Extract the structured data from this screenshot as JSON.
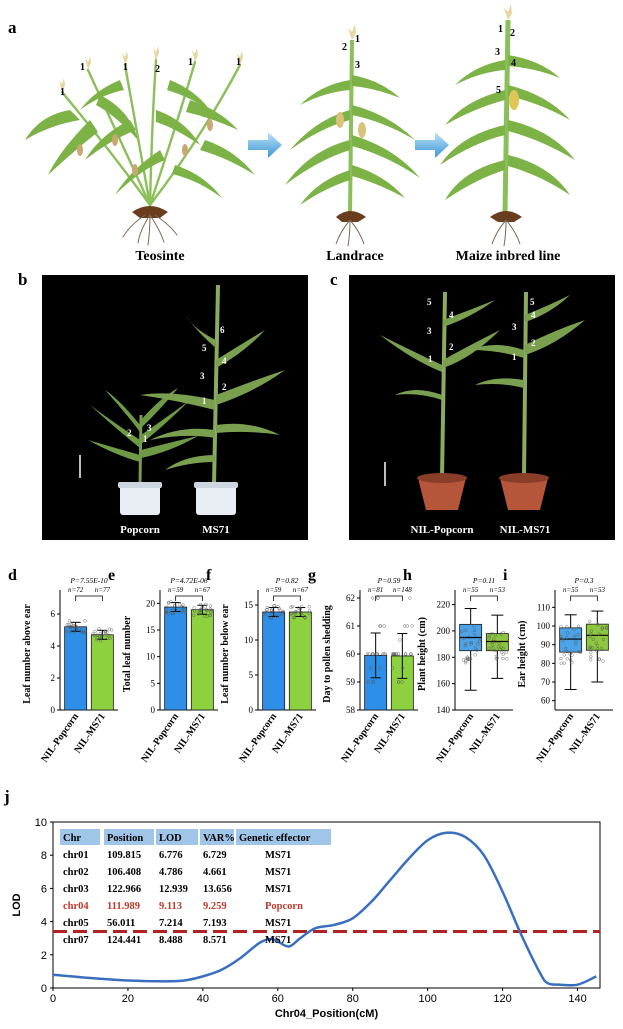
{
  "panel_a": {
    "label": "a",
    "stages": [
      "Teosinte",
      "Landrace",
      "Maize inbred line"
    ],
    "teosinte_numbers": [
      "1",
      "1",
      "1",
      "2",
      "1",
      "1"
    ],
    "landrace_numbers": [
      "2",
      "1",
      "3"
    ],
    "inbred_numbers": [
      "1",
      "2",
      "3",
      "4",
      "5"
    ]
  },
  "panel_b": {
    "label": "b",
    "captions": [
      "Popcorn",
      "MS71"
    ],
    "popcorn_numbers": [
      "2",
      "3",
      "1"
    ],
    "ms71_numbers": [
      "6",
      "5",
      "4",
      "3",
      "2",
      "1"
    ]
  },
  "panel_c": {
    "label": "c",
    "captions": [
      "NIL-Popcorn",
      "NIL-MS71"
    ],
    "left_numbers": [
      "5",
      "4",
      "3",
      "2",
      "1"
    ],
    "right_numbers": [
      "5",
      "4",
      "3",
      "2",
      "1"
    ]
  },
  "colors": {
    "popcorn_blue": "#2e8fe8",
    "ms71_green": "#8dd13f",
    "box_blue": "#4da3e8",
    "box_green": "#8dc63f",
    "qtl_curve": "#3a6fbf",
    "threshold": "#b22222",
    "table_header": "#9fc5e8",
    "highlight_red": "#c0392b"
  },
  "chart_data": [
    {
      "panel": "d",
      "type": "bar",
      "ylabel": "Leaf number above ear",
      "categories": [
        "NIL-Popcorn",
        "NIL-MS71"
      ],
      "values": [
        5.2,
        4.7
      ],
      "ylim": [
        0,
        7
      ],
      "yticks": [
        "0",
        "2",
        "4",
        "6"
      ],
      "p_value": "P=7.55E-10",
      "n": [
        "n=72",
        "n=77"
      ]
    },
    {
      "panel": "e",
      "type": "bar",
      "ylabel": "Total leaf number",
      "categories": [
        "NIL-Popcorn",
        "NIL-MS71"
      ],
      "values": [
        19.3,
        18.8
      ],
      "ylim": [
        0,
        21
      ],
      "yticks": [
        "0",
        "5",
        "10",
        "15",
        "20"
      ],
      "p_value": "P=4.72E-06",
      "n": [
        "n=59",
        "n=67"
      ]
    },
    {
      "panel": "f",
      "type": "bar",
      "ylabel": "Leaf number below ear",
      "categories": [
        "NIL-Popcorn",
        "NIL-MS71"
      ],
      "values": [
        14.0,
        14.0
      ],
      "ylim": [
        0,
        16
      ],
      "yticks": [
        "0",
        "5",
        "10",
        "15"
      ],
      "p_value": "P=0.82",
      "n": [
        "n=59",
        "n=67"
      ]
    },
    {
      "panel": "g",
      "type": "bar",
      "ylabel": "Day to pollen shedding",
      "categories": [
        "NIL-Popcorn",
        "NIL-MS71"
      ],
      "values": [
        59.95,
        59.93
      ],
      "ylim": [
        58,
        62
      ],
      "yticks": [
        "58",
        "59",
        "60",
        "61",
        "62"
      ],
      "p_value": "P=0.59",
      "n": [
        "n=81",
        "n=148"
      ]
    },
    {
      "panel": "h",
      "type": "box",
      "ylabel": "Plant height (cm)",
      "categories": [
        "NIL-Popcorn",
        "NIL-MS71"
      ],
      "boxes": [
        {
          "min": 155,
          "q1": 185,
          "median": 195,
          "q3": 205,
          "max": 217
        },
        {
          "min": 164,
          "q1": 185,
          "median": 192,
          "q3": 198,
          "max": 212
        }
      ],
      "ylim": [
        140,
        225
      ],
      "yticks": [
        "140",
        "160",
        "180",
        "200",
        "220"
      ],
      "p_value": "P=0.11",
      "n": [
        "n=55",
        "n=53"
      ]
    },
    {
      "panel": "i",
      "type": "box",
      "ylabel": "Ear height (cm)",
      "categories": [
        "NIL-Popcorn",
        "NIL-MS71"
      ],
      "boxes": [
        {
          "min": 66,
          "q1": 86,
          "median": 93,
          "q3": 99,
          "max": 106
        },
        {
          "min": 70,
          "q1": 87,
          "median": 95,
          "q3": 101,
          "max": 108
        }
      ],
      "ylim": [
        55,
        115
      ],
      "yticks": [
        "60",
        "70",
        "80",
        "90",
        "100",
        "110"
      ],
      "p_value": "P=0.3",
      "n": [
        "n=55",
        "n=53"
      ]
    },
    {
      "panel": "j",
      "type": "line",
      "ylabel": "LOD",
      "xlabel": "Chr04_Position(cM)",
      "x": [
        0,
        10,
        20,
        30,
        35,
        40,
        45,
        50,
        55,
        58,
        60,
        63,
        66,
        70,
        75,
        80,
        85,
        90,
        95,
        100,
        105,
        110,
        115,
        120,
        125,
        130,
        132,
        135,
        140,
        145
      ],
      "y": [
        0.8,
        0.6,
        0.45,
        0.4,
        0.45,
        0.7,
        1.1,
        1.8,
        2.7,
        2.95,
        2.8,
        2.5,
        3.0,
        3.6,
        3.8,
        4.2,
        5.2,
        6.5,
        7.8,
        8.9,
        9.35,
        9.1,
        8.0,
        5.8,
        3.2,
        0.9,
        0.3,
        0.2,
        0.2,
        0.7
      ],
      "xlim": [
        0,
        146
      ],
      "ylim": [
        0,
        10
      ],
      "xticks": [
        "0",
        "20",
        "40",
        "60",
        "80",
        "100",
        "120",
        "140"
      ],
      "yticks": [
        "0",
        "2",
        "4",
        "6",
        "8",
        "10"
      ],
      "threshold": 3.4,
      "table": {
        "headers": [
          "Chr",
          "Position",
          "LOD",
          "VAR%",
          "Genetic effector"
        ],
        "rows": [
          [
            "chr01",
            "109.815",
            "6.776",
            "6.729",
            "MS71"
          ],
          [
            "chr02",
            "106.408",
            "4.786",
            "4.661",
            "MS71"
          ],
          [
            "chr03",
            "122.966",
            "12.939",
            "13.656",
            "MS71"
          ],
          [
            "chr04",
            "111.989",
            "9.113",
            "9.259",
            "Popcorn"
          ],
          [
            "chr05",
            "56.011",
            "7.214",
            "7.193",
            "MS71"
          ],
          [
            "chr07",
            "124.441",
            "8.488",
            "8.571",
            "MS71"
          ]
        ],
        "highlight_row": 3
      }
    }
  ]
}
